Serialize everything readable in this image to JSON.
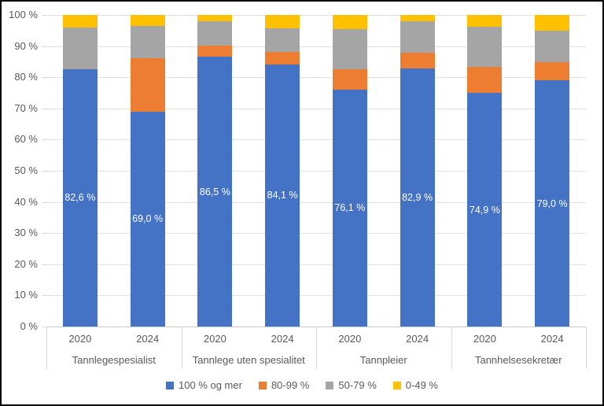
{
  "colors": {
    "blue": "#4472C4",
    "orange": "#ED7D31",
    "gray": "#A5A5A5",
    "yellow": "#FFC000",
    "gridline": "#E2E2E2",
    "axis_line": "#C9C9C9",
    "separator": "#D9D9D9",
    "tick": "#D9D9D9",
    "axis_text": "#595959",
    "data_label_text": "#FFFFFF",
    "figure_border": "#000000"
  },
  "chart_data": {
    "type": "bar",
    "variant": "stacked-100-percent-column",
    "title": "",
    "groups": [
      "Tannlegespesialist",
      "Tannlege uten spesialitet",
      "Tannpleier",
      "Tannhelsesekretær"
    ],
    "years": [
      "2020",
      "2024"
    ],
    "categories": [
      {
        "group": "Tannlegespesialist",
        "year": "2020"
      },
      {
        "group": "Tannlegespesialist",
        "year": "2024"
      },
      {
        "group": "Tannlege uten spesialitet",
        "year": "2020"
      },
      {
        "group": "Tannlege uten spesialitet",
        "year": "2024"
      },
      {
        "group": "Tannpleier",
        "year": "2020"
      },
      {
        "group": "Tannpleier",
        "year": "2024"
      },
      {
        "group": "Tannhelsesekretær",
        "year": "2020"
      },
      {
        "group": "Tannhelsesekretær",
        "year": "2024"
      }
    ],
    "series": [
      {
        "name": "100 % og mer",
        "color": "#4472C4",
        "values": [
          82.6,
          69.0,
          86.5,
          84.1,
          76.1,
          82.9,
          74.9,
          79.0
        ]
      },
      {
        "name": "80-99 %",
        "color": "#ED7D31",
        "values": [
          0.0,
          17.2,
          3.7,
          4.1,
          6.5,
          5.0,
          8.4,
          5.9
        ]
      },
      {
        "name": "50-79 %",
        "color": "#A5A5A5",
        "values": [
          13.3,
          10.3,
          7.8,
          7.4,
          12.9,
          10.1,
          12.8,
          10.0
        ]
      },
      {
        "name": "0-49 %",
        "color": "#FFC000",
        "values": [
          4.1,
          3.5,
          2.0,
          4.4,
          4.5,
          2.0,
          3.9,
          5.1
        ]
      }
    ],
    "data_labels": [
      "82,6 %",
      "69,0 %",
      "86,5 %",
      "84,1 %",
      "76,1 %",
      "82,9 %",
      "74,9 %",
      "79,0 %"
    ],
    "data_labels_on_series": "100 % og mer",
    "y_ticks": [
      "0 %",
      "10 %",
      "20 %",
      "30 %",
      "40 %",
      "50 %",
      "60 %",
      "70 %",
      "80 %",
      "90 %",
      "100 %"
    ],
    "ylim": [
      0,
      100
    ],
    "xlabel": "",
    "ylabel": "",
    "grid": true,
    "legend_position": "bottom",
    "legend": [
      "100 % og mer",
      "80-99 %",
      "50-79 %",
      "0-49 %"
    ]
  }
}
